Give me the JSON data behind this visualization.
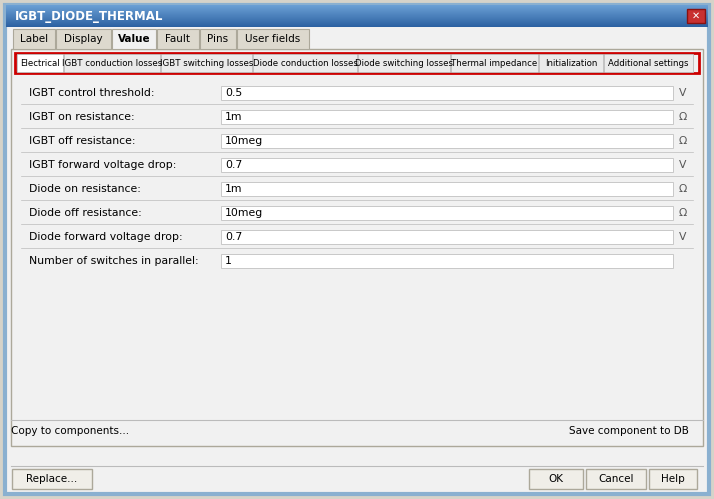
{
  "title": "IGBT_DIODE_THERMAL",
  "top_tabs": [
    "Label",
    "Display",
    "Value",
    "Fault",
    "Pins",
    "User fields"
  ],
  "active_top_tab": "Value",
  "sub_tabs": [
    "Electrical",
    "IGBT conduction losses",
    "IGBT switching losses",
    "Diode conduction losses",
    "Diode switching losses",
    "Thermal impedance",
    "Initialization",
    "Additional settings"
  ],
  "active_sub_tab": "Electrical",
  "params": [
    {
      "label": "IGBT control threshold:",
      "value": "0.5",
      "unit": "V"
    },
    {
      "label": "IGBT on resistance:",
      "value": "1m",
      "unit": "Ω"
    },
    {
      "label": "IGBT off resistance:",
      "value": "10meg",
      "unit": "Ω"
    },
    {
      "label": "IGBT forward voltage drop:",
      "value": "0.7",
      "unit": "V"
    },
    {
      "label": "Diode on resistance:",
      "value": "1m",
      "unit": "Ω"
    },
    {
      "label": "Diode off resistance:",
      "value": "10meg",
      "unit": "Ω"
    },
    {
      "label": "Diode forward voltage drop:",
      "value": "0.7",
      "unit": "V"
    },
    {
      "label": "Number of switches in parallel:",
      "value": "1",
      "unit": ""
    }
  ],
  "btn_copy": "Copy to components...",
  "btn_save": "Save component to DB",
  "btn_replace": "Replace...",
  "btn_ok": "OK",
  "btn_cancel": "Cancel",
  "btn_help": "Help",
  "bg_outer": "#D6D3C9",
  "bg_dialog": "#F1F1F1",
  "bg_content": "#F1F1F1",
  "title_bar_top": "#6A9FD4",
  "title_bar_bot": "#2A5FA0",
  "close_btn_color": "#C83030",
  "tab_active_bg": "#F1F1F1",
  "tab_inactive_bg": "#DDD9CE",
  "tab_border": "#ACA89A",
  "red_border": "#CC0000",
  "input_bg": "#FFFFFF",
  "input_border": "#C8C8C8",
  "btn_bg": "#F0EEE8",
  "btn_border": "#ACA89A",
  "text_color": "#000000",
  "unit_color": "#555555",
  "separator_color": "#BBBBBB",
  "outer_border_color": "#8AB0D0"
}
